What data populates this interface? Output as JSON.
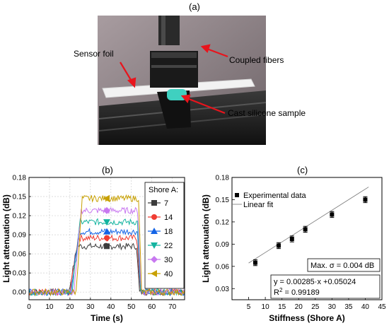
{
  "panels": {
    "a": "(a)",
    "b": "(b)",
    "c": "(c)"
  },
  "photo": {
    "labels": {
      "sensor_foil": "Sensor foil",
      "coupled_fibers": "Coupled fibers",
      "cast_sample": "Cast silicone sample"
    },
    "colors": {
      "arrow": "#e8141c",
      "sample": "#3fd0c0",
      "background": "#8f7f84"
    }
  },
  "chart_data": [
    {
      "type": "line",
      "title": "",
      "xlabel": "Time (s)",
      "ylabel": "Light attenuation (dB)",
      "xlim": [
        0,
        76
      ],
      "ylim": [
        -0.012,
        0.18
      ],
      "xticks": [
        0,
        10,
        20,
        30,
        40,
        50,
        60,
        70
      ],
      "yticks": [
        0.0,
        0.03,
        0.06,
        0.09,
        0.12,
        0.15,
        0.18
      ],
      "ytick_labels": [
        "0.00",
        "0.03",
        "0.06",
        "0.09",
        "0.12",
        "0.15",
        "0.18"
      ],
      "grid": true,
      "legend": {
        "title": "Shore A:",
        "placement": "top-right"
      },
      "series": [
        {
          "name": "7",
          "plateau": 0.072,
          "rise_start": 19.5,
          "rise_end": 23.5,
          "fall": 52.5,
          "color": "#3c3c3c",
          "marker": "square",
          "marker_x": 38
        },
        {
          "name": "14",
          "plateau": 0.085,
          "rise_start": 20.0,
          "rise_end": 24.0,
          "fall": 52.8,
          "color": "#f03c32",
          "marker": "circle",
          "marker_x": 38
        },
        {
          "name": "18",
          "plateau": 0.095,
          "rise_start": 20.5,
          "rise_end": 24.5,
          "fall": 53.0,
          "color": "#1464e6",
          "marker": "triangle-up",
          "marker_x": 38
        },
        {
          "name": "22",
          "plateau": 0.11,
          "rise_start": 21.0,
          "rise_end": 25.0,
          "fall": 53.0,
          "color": "#14b4a0",
          "marker": "triangle-down",
          "marker_x": 38
        },
        {
          "name": "30",
          "plateau": 0.128,
          "rise_start": 22.0,
          "rise_end": 25.5,
          "fall": 53.2,
          "color": "#c878f0",
          "marker": "diamond",
          "marker_x": 38
        },
        {
          "name": "40",
          "plateau": 0.147,
          "rise_start": 23.0,
          "rise_end": 26.0,
          "fall": 53.5,
          "color": "#c8a000",
          "marker": "triangle-left",
          "marker_x": 38
        }
      ]
    },
    {
      "type": "scatter",
      "title": "",
      "xlabel": "Stiffness (Shore A)",
      "ylabel": "Light attenuation (dB)",
      "xlim": [
        0,
        45
      ],
      "ylim": [
        0.015,
        0.18
      ],
      "xticks": [
        5,
        10,
        15,
        20,
        25,
        30,
        35,
        40,
        45
      ],
      "yticks": [
        0.03,
        0.06,
        0.09,
        0.12,
        0.15,
        0.18
      ],
      "ytick_labels": [
        "0.03",
        "0.06",
        "0.09",
        "0.12",
        "0.15",
        "0.18"
      ],
      "grid": false,
      "legend": {
        "placement": "top-left",
        "entries": [
          "Experimental data",
          "Linear fit"
        ]
      },
      "points": [
        {
          "x": 7,
          "y": 0.065,
          "err": 0.004
        },
        {
          "x": 14,
          "y": 0.088,
          "err": 0.004
        },
        {
          "x": 18,
          "y": 0.097,
          "err": 0.004
        },
        {
          "x": 22,
          "y": 0.11,
          "err": 0.004
        },
        {
          "x": 30,
          "y": 0.13,
          "err": 0.004
        },
        {
          "x": 40,
          "y": 0.15,
          "err": 0.004
        }
      ],
      "fit": {
        "slope": 0.00285,
        "intercept": 0.05024,
        "x_range": [
          5,
          41
        ]
      },
      "annotations": {
        "sigma": "Max. σ = 0.004 dB",
        "equation": "y = 0.00285·x +0.05024",
        "r2_prefix": "R",
        "r2_sup": "2",
        "r2_value": " = 0.99189"
      }
    }
  ]
}
